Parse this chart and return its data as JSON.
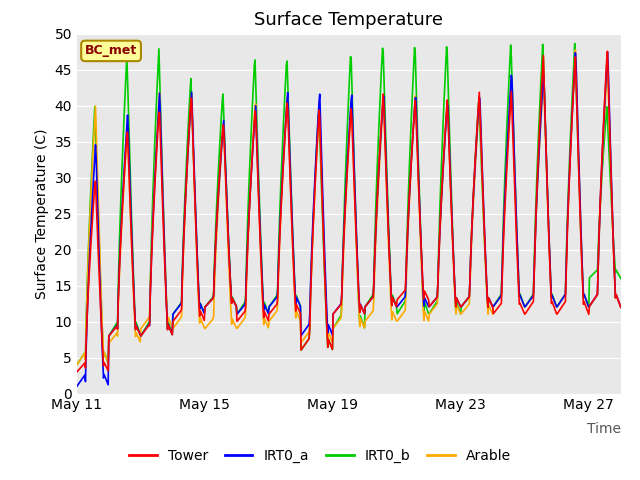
{
  "title": "Surface Temperature",
  "ylabel": "Surface Temperature (C)",
  "xlabel": "Time",
  "ylim": [
    0,
    50
  ],
  "annotation": "BC_met",
  "legend_labels": [
    "Tower",
    "IRT0_a",
    "IRT0_b",
    "Arable"
  ],
  "line_colors": {
    "Tower": "#ff0000",
    "IRT0_a": "#0000ff",
    "IRT0_b": "#00cc00",
    "Arable": "#ffaa00"
  },
  "xtick_labels": [
    "May 11",
    "May 15",
    "May 19",
    "May 23",
    "May 27"
  ],
  "xtick_positions": [
    0,
    4,
    8,
    12,
    16
  ],
  "bg_color": "#e8e8e8",
  "fig_bg": "#ffffff",
  "title_fontsize": 13,
  "axis_fontsize": 10,
  "annotation_bg": "#ffff99",
  "annotation_border": "#aa8800",
  "days": 17,
  "n_per_day": 48,
  "day_peaks_tower": [
    30,
    37,
    40,
    42,
    38,
    40,
    41,
    40,
    40,
    42,
    41,
    41,
    42,
    42,
    47,
    47,
    48
  ],
  "day_mins_tower": [
    3,
    8,
    8,
    10,
    12,
    10,
    11,
    6,
    11,
    12,
    13,
    12,
    12,
    11,
    11,
    11,
    12
  ],
  "day_peaks_irta": [
    35,
    39,
    42,
    42,
    38,
    40,
    42,
    42,
    42,
    42,
    42,
    41,
    42,
    45,
    45,
    48,
    48
  ],
  "day_mins_irta": [
    1,
    8,
    8,
    11,
    12,
    11,
    12,
    8,
    11,
    12,
    12,
    12,
    12,
    12,
    12,
    12,
    12
  ],
  "day_peaks_irtb": [
    40,
    47,
    48,
    44,
    42,
    47,
    47,
    40,
    48,
    49,
    49,
    49,
    41,
    49,
    49,
    49,
    40
  ],
  "day_mins_irtb": [
    4,
    8,
    8,
    11,
    12,
    11,
    12,
    6,
    9,
    12,
    11,
    11,
    12,
    12,
    12,
    12,
    16
  ],
  "day_peaks_arable": [
    40,
    37,
    42,
    42,
    38,
    41,
    42,
    40,
    41,
    41,
    42,
    41,
    41,
    44,
    44,
    48,
    46
  ],
  "day_mins_arable": [
    4,
    7,
    9,
    9,
    9,
    9,
    10,
    7,
    9,
    10,
    10,
    11,
    11,
    12,
    12,
    12,
    12
  ]
}
